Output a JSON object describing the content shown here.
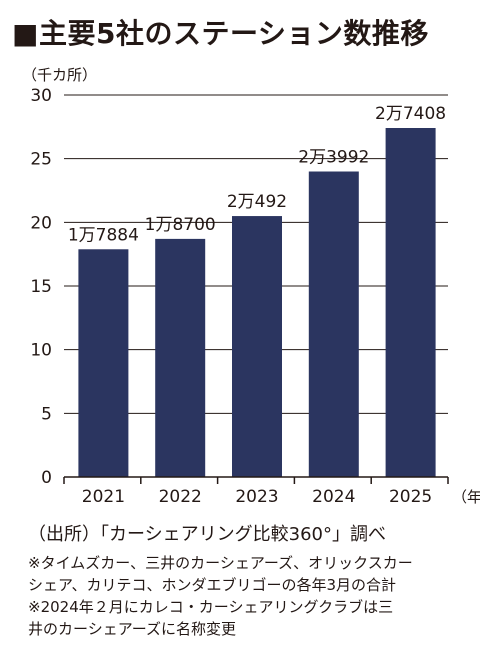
{
  "chart_data": {
    "type": "bar",
    "title": "■主要5社のステーション数推移",
    "unit_label": "（千カ所）",
    "x_unit": "（年）",
    "categories": [
      "2021",
      "2022",
      "2023",
      "2024",
      "2025"
    ],
    "values": [
      17.884,
      18.7,
      20.492,
      23.992,
      27.408
    ],
    "data_labels": [
      "1万7884",
      "1万8700",
      "2万492",
      "2万3992",
      "2万7408"
    ],
    "ylim": [
      0,
      30
    ],
    "yticks": [
      "0",
      "5",
      "10",
      "15",
      "20",
      "25",
      "30"
    ],
    "grid": true,
    "bar_color": "#2b3560"
  },
  "source": "（出所）「カーシェアリング比較360°」調べ",
  "notes": [
    "※タイムズカー、三井のカーシェアーズ、オリックスカー",
    "シェア、カリテコ、ホンダエブリゴーの各年3月の合計",
    "※2024年２月にカレコ・カーシェアリングクラブは三",
    "井のカーシェアーズに名称変更"
  ]
}
